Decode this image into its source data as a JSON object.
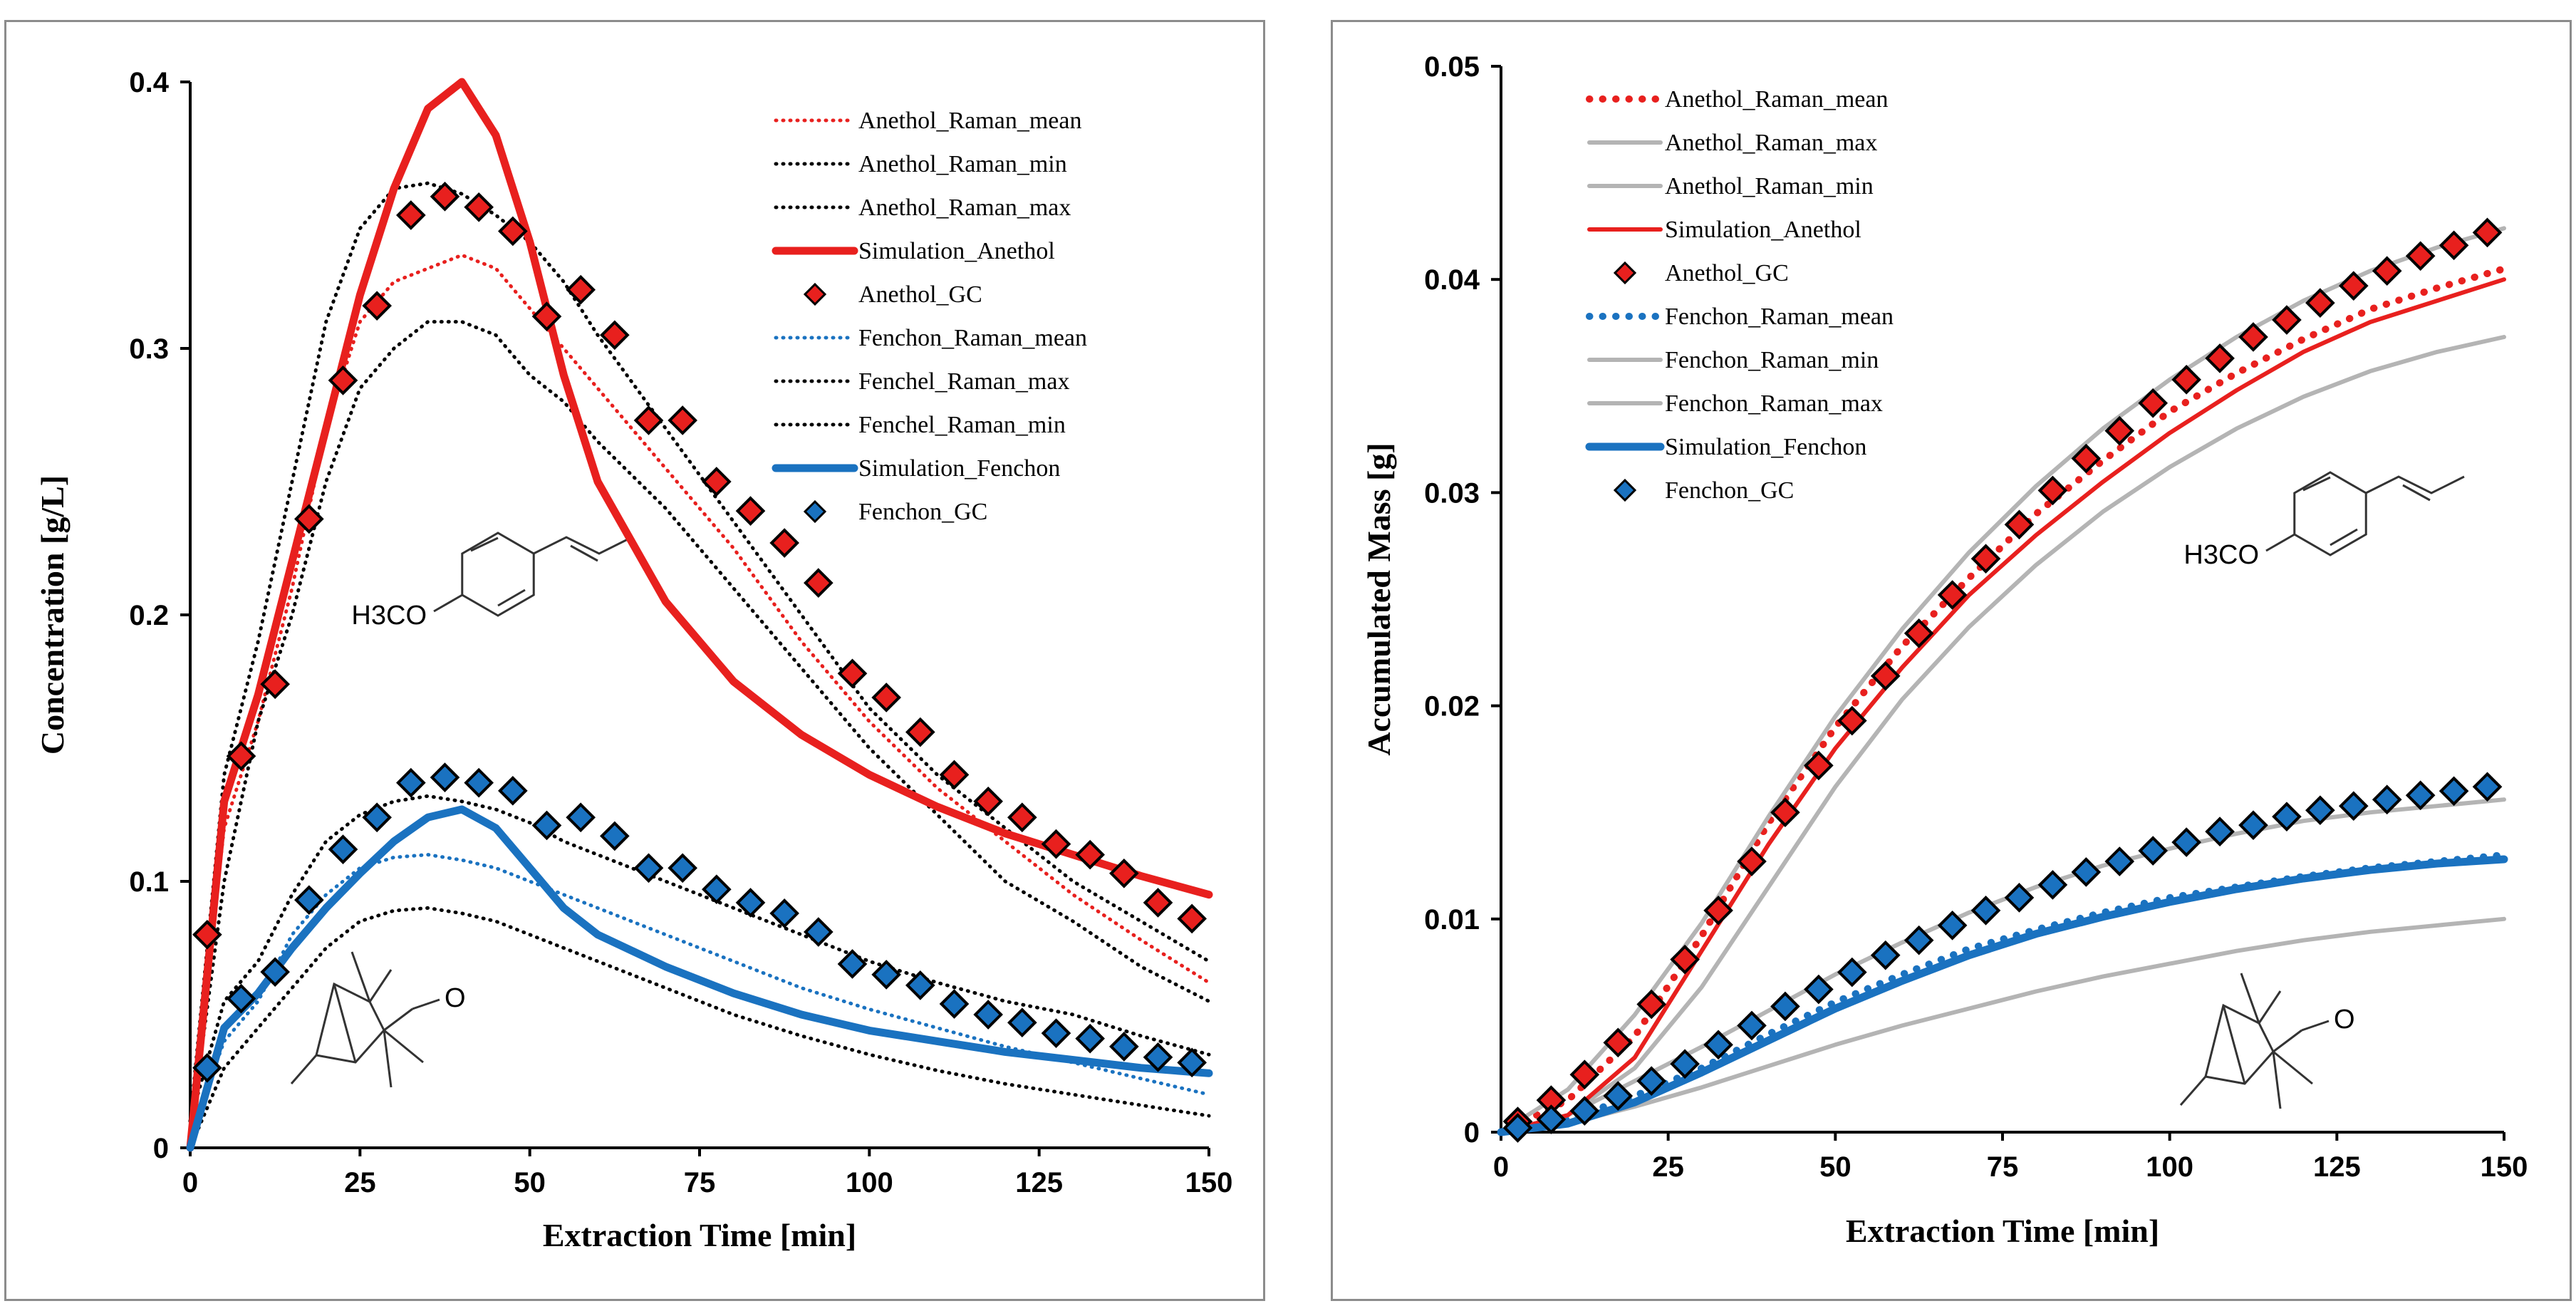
{
  "chart_data": [
    {
      "type": "line",
      "xlabel": "Extraction Time [min]",
      "ylabel": "Concentration [g/L]",
      "xlim": [
        0,
        150
      ],
      "ylim": [
        0,
        0.4
      ],
      "xticks": [
        "0",
        "25",
        "50",
        "75",
        "100",
        "125",
        "150"
      ],
      "yticks": [
        "0",
        "0.1",
        "0.2",
        "0.3",
        "0.4"
      ],
      "structure_labels": {
        "anethol": "H3CO",
        "fenchon": "O"
      },
      "series": [
        {
          "name": "Anethol_Raman_mean",
          "style": "dotted",
          "color": "#e8201e",
          "x": [
            0,
            5,
            10,
            15,
            20,
            25,
            30,
            35,
            40,
            45,
            50,
            55,
            60,
            70,
            80,
            90,
            100,
            110,
            120,
            130,
            140,
            150
          ],
          "y": [
            0.01,
            0.12,
            0.16,
            0.21,
            0.27,
            0.31,
            0.325,
            0.33,
            0.335,
            0.33,
            0.315,
            0.3,
            0.285,
            0.255,
            0.225,
            0.19,
            0.16,
            0.135,
            0.115,
            0.095,
            0.078,
            0.062
          ]
        },
        {
          "name": "Anethol_Raman_min",
          "style": "dotted",
          "color": "#000000",
          "x": [
            0,
            5,
            10,
            15,
            20,
            25,
            30,
            35,
            40,
            45,
            50,
            55,
            60,
            70,
            80,
            90,
            100,
            110,
            120,
            130,
            140,
            150
          ],
          "y": [
            0.005,
            0.1,
            0.16,
            0.2,
            0.25,
            0.285,
            0.3,
            0.31,
            0.31,
            0.305,
            0.29,
            0.28,
            0.265,
            0.24,
            0.21,
            0.18,
            0.15,
            0.125,
            0.1,
            0.085,
            0.068,
            0.055
          ]
        },
        {
          "name": "Anethol_Raman_max",
          "style": "dotted",
          "color": "#000000",
          "x": [
            0,
            5,
            10,
            15,
            20,
            25,
            30,
            35,
            40,
            45,
            50,
            55,
            60,
            70,
            80,
            90,
            100,
            110,
            120,
            130,
            140,
            150
          ],
          "y": [
            0.01,
            0.14,
            0.19,
            0.25,
            0.31,
            0.345,
            0.36,
            0.362,
            0.358,
            0.35,
            0.34,
            0.325,
            0.305,
            0.27,
            0.235,
            0.2,
            0.165,
            0.14,
            0.12,
            0.1,
            0.085,
            0.07
          ]
        },
        {
          "name": "Simulation_Anethol",
          "style": "thick",
          "color": "#e8201e",
          "x": [
            0,
            5,
            10,
            15,
            20,
            25,
            30,
            35,
            40,
            45,
            50,
            55,
            60,
            70,
            80,
            90,
            100,
            110,
            120,
            130,
            140,
            150
          ],
          "y": [
            0,
            0.13,
            0.17,
            0.22,
            0.27,
            0.32,
            0.36,
            0.39,
            0.4,
            0.38,
            0.34,
            0.29,
            0.25,
            0.205,
            0.175,
            0.155,
            0.14,
            0.128,
            0.118,
            0.11,
            0.102,
            0.095
          ]
        },
        {
          "name": "Anethol_GC",
          "style": "diamond",
          "color": "#e8201e",
          "x": [
            2.5,
            7.5,
            12.5,
            17.5,
            22.5,
            27.5,
            32.5,
            37.5,
            42.5,
            47.5,
            52.5,
            57.5,
            62.5,
            67.5,
            72.5,
            77.5,
            82.5,
            87.5,
            92.5,
            97.5,
            102.5,
            107.5,
            112.5,
            117.5,
            122.5,
            127.5,
            132.5,
            137.5,
            142.5,
            147.5
          ],
          "y": [
            0.08,
            0.147,
            0.174,
            0.236,
            0.288,
            0.316,
            0.35,
            0.357,
            0.353,
            0.344,
            0.312,
            0.322,
            0.305,
            0.273,
            0.273,
            0.25,
            0.239,
            0.227,
            0.212,
            0.178,
            0.169,
            0.156,
            0.14,
            0.13,
            0.124,
            0.114,
            0.11,
            0.103,
            0.092,
            0.086
          ]
        },
        {
          "name": "Fenchon_Raman_mean",
          "style": "dotted",
          "color": "#1a72c0",
          "x": [
            0,
            5,
            10,
            15,
            20,
            25,
            30,
            35,
            40,
            45,
            50,
            55,
            60,
            70,
            80,
            90,
            100,
            110,
            120,
            130,
            140,
            150
          ],
          "y": [
            0.005,
            0.04,
            0.055,
            0.08,
            0.095,
            0.105,
            0.109,
            0.11,
            0.108,
            0.105,
            0.1,
            0.095,
            0.09,
            0.08,
            0.07,
            0.06,
            0.052,
            0.045,
            0.038,
            0.032,
            0.026,
            0.02
          ]
        },
        {
          "name": "Fenchel_Raman_max",
          "style": "dotted",
          "color": "#000000",
          "x": [
            0,
            5,
            10,
            15,
            20,
            25,
            30,
            35,
            40,
            45,
            50,
            55,
            60,
            70,
            80,
            90,
            100,
            110,
            120,
            130,
            140,
            150
          ],
          "y": [
            0.01,
            0.055,
            0.07,
            0.095,
            0.115,
            0.125,
            0.13,
            0.132,
            0.13,
            0.127,
            0.122,
            0.115,
            0.11,
            0.1,
            0.09,
            0.08,
            0.07,
            0.062,
            0.055,
            0.05,
            0.042,
            0.035
          ]
        },
        {
          "name": "Fenchel_Raman_min",
          "style": "dotted",
          "color": "#000000",
          "x": [
            0,
            5,
            10,
            15,
            20,
            25,
            30,
            35,
            40,
            45,
            50,
            55,
            60,
            70,
            80,
            90,
            100,
            110,
            120,
            130,
            140,
            150
          ],
          "y": [
            0,
            0.03,
            0.045,
            0.06,
            0.075,
            0.085,
            0.089,
            0.09,
            0.088,
            0.085,
            0.08,
            0.075,
            0.07,
            0.06,
            0.05,
            0.042,
            0.035,
            0.029,
            0.024,
            0.02,
            0.016,
            0.012
          ]
        },
        {
          "name": "Simulation_Fenchon",
          "style": "thick",
          "color": "#1a72c0",
          "x": [
            0,
            5,
            10,
            15,
            20,
            25,
            30,
            35,
            40,
            45,
            50,
            55,
            60,
            70,
            80,
            90,
            100,
            110,
            120,
            130,
            140,
            150
          ],
          "y": [
            0,
            0.045,
            0.058,
            0.075,
            0.09,
            0.103,
            0.115,
            0.124,
            0.127,
            0.12,
            0.105,
            0.09,
            0.08,
            0.068,
            0.058,
            0.05,
            0.044,
            0.04,
            0.036,
            0.033,
            0.03,
            0.028
          ]
        },
        {
          "name": "Fenchon_GC",
          "style": "diamond",
          "color": "#1a72c0",
          "x": [
            2.5,
            7.5,
            12.5,
            17.5,
            22.5,
            27.5,
            32.5,
            37.5,
            42.5,
            47.5,
            52.5,
            57.5,
            62.5,
            67.5,
            72.5,
            77.5,
            82.5,
            87.5,
            92.5,
            97.5,
            102.5,
            107.5,
            112.5,
            117.5,
            122.5,
            127.5,
            132.5,
            137.5,
            142.5,
            147.5
          ],
          "y": [
            0.03,
            0.056,
            0.066,
            0.093,
            0.112,
            0.124,
            0.137,
            0.139,
            0.137,
            0.134,
            0.121,
            0.124,
            0.117,
            0.105,
            0.105,
            0.097,
            0.092,
            0.088,
            0.081,
            0.069,
            0.065,
            0.061,
            0.054,
            0.05,
            0.047,
            0.043,
            0.041,
            0.038,
            0.034,
            0.032
          ]
        }
      ]
    },
    {
      "type": "line",
      "xlabel": "Extraction Time [min]",
      "ylabel": "Accumulated  Mass [g]",
      "xlim": [
        0,
        150
      ],
      "ylim": [
        0,
        0.05
      ],
      "xticks": [
        "0",
        "25",
        "50",
        "75",
        "100",
        "125",
        "150"
      ],
      "yticks": [
        "0",
        "0.01",
        "0.02",
        "0.03",
        "0.04",
        "0.05"
      ],
      "structure_labels": {
        "anethol": "H3CO",
        "fenchon": "O"
      },
      "series": [
        {
          "name": "Anethol_Raman_mean",
          "style": "dotted-thick",
          "color": "#e8201e",
          "x": [
            0,
            10,
            20,
            30,
            40,
            50,
            60,
            70,
            80,
            90,
            100,
            110,
            120,
            130,
            140,
            150
          ],
          "y": [
            0,
            0.0015,
            0.0045,
            0.0092,
            0.0145,
            0.019,
            0.0228,
            0.026,
            0.029,
            0.0315,
            0.0338,
            0.0356,
            0.0372,
            0.0386,
            0.0396,
            0.0405
          ]
        },
        {
          "name": "Anethol_Raman_max",
          "style": "solid-grey",
          "color": "#b4b4b4",
          "x": [
            0,
            10,
            20,
            30,
            40,
            50,
            60,
            70,
            80,
            90,
            100,
            110,
            120,
            130,
            140,
            150
          ],
          "y": [
            0,
            0.002,
            0.0055,
            0.0098,
            0.0148,
            0.0195,
            0.0236,
            0.0272,
            0.0303,
            0.033,
            0.0353,
            0.0373,
            0.039,
            0.0404,
            0.0415,
            0.0424
          ]
        },
        {
          "name": "Anethol_Raman_min",
          "style": "solid-grey",
          "color": "#b4b4b4",
          "x": [
            0,
            10,
            20,
            30,
            40,
            50,
            60,
            70,
            80,
            90,
            100,
            110,
            120,
            130,
            140,
            150
          ],
          "y": [
            0,
            0.0008,
            0.003,
            0.0068,
            0.0115,
            0.0162,
            0.0203,
            0.0237,
            0.0266,
            0.0291,
            0.0312,
            0.033,
            0.0345,
            0.0357,
            0.0366,
            0.0373
          ]
        },
        {
          "name": "Simulation_Anethol",
          "style": "solid",
          "color": "#e8201e",
          "x": [
            0,
            10,
            20,
            30,
            40,
            50,
            60,
            70,
            80,
            90,
            100,
            110,
            120,
            130,
            140,
            150
          ],
          "y": [
            0,
            0.0008,
            0.0035,
            0.0085,
            0.0135,
            0.018,
            0.0218,
            0.0252,
            0.028,
            0.0305,
            0.0328,
            0.0348,
            0.0366,
            0.038,
            0.039,
            0.04
          ]
        },
        {
          "name": "Anethol_GC",
          "style": "diamond",
          "color": "#e8201e",
          "x": [
            2.5,
            7.5,
            12.5,
            17.5,
            22.5,
            27.5,
            32.5,
            37.5,
            42.5,
            47.5,
            52.5,
            57.5,
            62.5,
            67.5,
            72.5,
            77.5,
            82.5,
            87.5,
            92.5,
            97.5,
            102.5,
            107.5,
            112.5,
            117.5,
            122.5,
            127.5,
            132.5,
            137.5,
            142.5,
            147.5
          ],
          "y": [
            0.0005,
            0.0015,
            0.0027,
            0.0042,
            0.006,
            0.0081,
            0.0104,
            0.0127,
            0.015,
            0.0172,
            0.0193,
            0.0214,
            0.0234,
            0.0252,
            0.0269,
            0.0285,
            0.0301,
            0.0316,
            0.0329,
            0.0342,
            0.0353,
            0.0363,
            0.0373,
            0.0381,
            0.0389,
            0.0397,
            0.0404,
            0.0411,
            0.0416,
            0.0422
          ]
        },
        {
          "name": "Fenchon_Raman_mean",
          "style": "dotted-thick",
          "color": "#1a72c0",
          "x": [
            0,
            10,
            20,
            30,
            40,
            50,
            60,
            70,
            80,
            90,
            100,
            110,
            120,
            130,
            140,
            150
          ],
          "y": [
            0,
            0.0006,
            0.0017,
            0.003,
            0.0046,
            0.0061,
            0.0074,
            0.0086,
            0.0095,
            0.0103,
            0.011,
            0.0115,
            0.012,
            0.0124,
            0.0127,
            0.013
          ]
        },
        {
          "name": "Fenchon_Raman_min",
          "style": "solid-grey",
          "color": "#b4b4b4",
          "x": [
            0,
            10,
            20,
            30,
            40,
            50,
            60,
            70,
            80,
            90,
            100,
            110,
            120,
            130,
            140,
            150
          ],
          "y": [
            0,
            0.0004,
            0.0012,
            0.0021,
            0.0031,
            0.0041,
            0.005,
            0.0058,
            0.0066,
            0.0073,
            0.0079,
            0.0085,
            0.009,
            0.0094,
            0.0097,
            0.01
          ]
        },
        {
          "name": "Fenchon_Raman_max",
          "style": "solid-grey",
          "color": "#b4b4b4",
          "x": [
            0,
            10,
            20,
            30,
            40,
            50,
            60,
            70,
            80,
            90,
            100,
            110,
            120,
            130,
            140,
            150
          ],
          "y": [
            0,
            0.0008,
            0.0024,
            0.004,
            0.0057,
            0.0074,
            0.0089,
            0.0103,
            0.0115,
            0.0125,
            0.0133,
            0.014,
            0.0146,
            0.015,
            0.0153,
            0.0156
          ]
        },
        {
          "name": "Simulation_Fenchon",
          "style": "thick",
          "color": "#1a72c0",
          "x": [
            0,
            10,
            20,
            30,
            40,
            50,
            60,
            70,
            80,
            90,
            100,
            110,
            120,
            130,
            140,
            150
          ],
          "y": [
            0,
            0.0004,
            0.0014,
            0.0028,
            0.0043,
            0.0058,
            0.0071,
            0.0083,
            0.0093,
            0.0101,
            0.0108,
            0.0114,
            0.0119,
            0.0123,
            0.0126,
            0.0128
          ]
        },
        {
          "name": "Fenchon_GC",
          "style": "diamond",
          "color": "#1a72c0",
          "x": [
            2.5,
            7.5,
            12.5,
            17.5,
            22.5,
            27.5,
            32.5,
            37.5,
            42.5,
            47.5,
            52.5,
            57.5,
            62.5,
            67.5,
            72.5,
            77.5,
            82.5,
            87.5,
            92.5,
            97.5,
            102.5,
            107.5,
            112.5,
            117.5,
            122.5,
            127.5,
            132.5,
            137.5,
            142.5,
            147.5
          ],
          "y": [
            0.0002,
            0.0006,
            0.001,
            0.0017,
            0.0024,
            0.0032,
            0.0041,
            0.005,
            0.0059,
            0.0067,
            0.0075,
            0.0083,
            0.009,
            0.0097,
            0.0104,
            0.011,
            0.0116,
            0.0122,
            0.0127,
            0.0132,
            0.0136,
            0.0141,
            0.0144,
            0.0148,
            0.0151,
            0.0153,
            0.0156,
            0.0158,
            0.016,
            0.0162
          ]
        }
      ]
    }
  ]
}
